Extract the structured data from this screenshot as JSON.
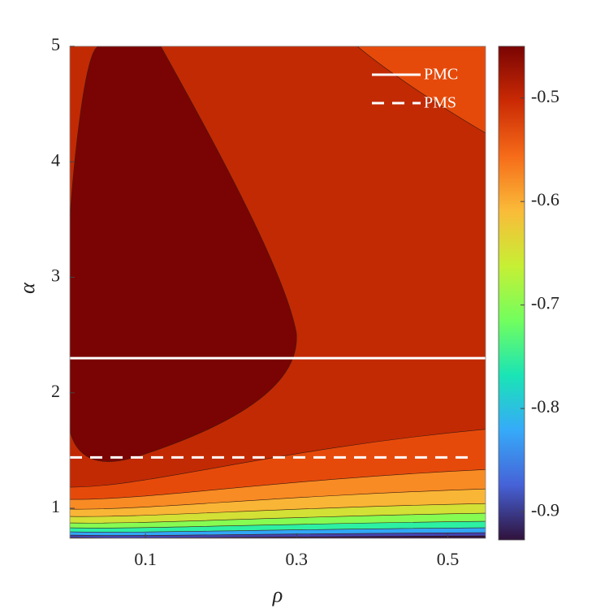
{
  "chart_data": {
    "type": "contour",
    "xlabel": "ρ",
    "ylabel": "α",
    "xlim": [
      0,
      0.55
    ],
    "ylim": [
      0.74,
      5
    ],
    "xticks": [
      0.1,
      0.3,
      0.5
    ],
    "yticks": [
      1,
      2,
      3,
      4,
      5
    ],
    "clim": [
      -0.927,
      -0.45
    ],
    "cticks": [
      -0.5,
      -0.6,
      -0.7,
      -0.8,
      -0.9
    ],
    "colormap": [
      "#30123b",
      "#4662d7",
      "#36aaf9",
      "#1ae4b6",
      "#72fe5e",
      "#c7ef34",
      "#fabb39",
      "#f66b19",
      "#ca2a04",
      "#7a0403"
    ],
    "levels": [
      {
        "value": -0.475,
        "color": "#7a0403"
      },
      {
        "value": -0.5,
        "color": "#c22a04"
      },
      {
        "value": -0.525,
        "color": "#e64a0b"
      },
      {
        "value": -0.575,
        "color": "#f88b24"
      },
      {
        "value": -0.625,
        "color": "#f9b535"
      },
      {
        "value": -0.675,
        "color": "#d3e035"
      },
      {
        "value": -0.725,
        "color": "#86fb52"
      },
      {
        "value": -0.775,
        "color": "#2cf0a2"
      },
      {
        "value": -0.825,
        "color": "#31a7f6"
      },
      {
        "value": -0.875,
        "color": "#4244b2"
      },
      {
        "value": -0.925,
        "color": "#30123b"
      }
    ],
    "lines": [
      {
        "name": "PMC",
        "y": 2.3,
        "x": [
          0,
          0.55
        ],
        "style": "solid",
        "color": "#ffffff"
      },
      {
        "name": "PMS",
        "y": 1.44,
        "x": [
          0,
          0.53
        ],
        "style": "dashed",
        "color": "#ffffff"
      }
    ],
    "legend": "upper right"
  }
}
